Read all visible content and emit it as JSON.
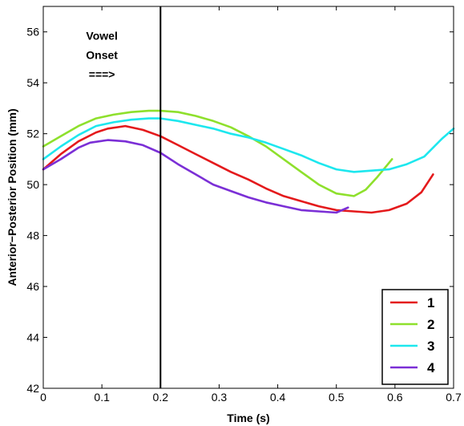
{
  "chart_data": {
    "type": "line",
    "title": "",
    "xlabel": "Time (s)",
    "ylabel": "Anterior−Posterior Position (mm)",
    "xlim": [
      0,
      0.7
    ],
    "ylim": [
      42,
      57
    ],
    "x_ticks": [
      0,
      0.1,
      0.2,
      0.3,
      0.4,
      0.5,
      0.6,
      0.7
    ],
    "x_tick_labels": [
      "0",
      "0.1",
      "0.2",
      "0.3",
      "0.4",
      "0.5",
      "0.6",
      "0.7"
    ],
    "y_ticks": [
      42,
      44,
      46,
      48,
      50,
      52,
      54,
      56
    ],
    "y_tick_labels": [
      "42",
      "44",
      "46",
      "48",
      "50",
      "52",
      "54",
      "56"
    ],
    "grid": false,
    "legend_position": "bottom-right",
    "vertical_line": {
      "x": 0.2,
      "color": "#000000"
    },
    "annotation": {
      "lines": [
        "Vowel",
        "Onset",
        "===>"
      ],
      "x": 0.1,
      "y": 55.7
    },
    "series": [
      {
        "name": "1",
        "color": "#e41a1c",
        "x": [
          0,
          0.03,
          0.06,
          0.09,
          0.11,
          0.14,
          0.17,
          0.2,
          0.23,
          0.26,
          0.29,
          0.32,
          0.35,
          0.38,
          0.41,
          0.44,
          0.47,
          0.5,
          0.53,
          0.56,
          0.59,
          0.62,
          0.645,
          0.665
        ],
        "y": [
          50.6,
          51.2,
          51.7,
          52.05,
          52.2,
          52.3,
          52.15,
          51.9,
          51.55,
          51.2,
          50.85,
          50.5,
          50.2,
          49.85,
          49.55,
          49.35,
          49.15,
          49.0,
          48.95,
          48.9,
          49.0,
          49.25,
          49.7,
          50.4
        ]
      },
      {
        "name": "2",
        "color": "#8ee02c",
        "x": [
          0,
          0.03,
          0.06,
          0.09,
          0.12,
          0.15,
          0.18,
          0.2,
          0.23,
          0.26,
          0.29,
          0.32,
          0.35,
          0.38,
          0.41,
          0.44,
          0.47,
          0.5,
          0.53,
          0.55,
          0.57,
          0.595
        ],
        "y": [
          51.5,
          51.9,
          52.3,
          52.6,
          52.75,
          52.85,
          52.9,
          52.9,
          52.85,
          52.7,
          52.5,
          52.25,
          51.9,
          51.5,
          51.0,
          50.5,
          50.0,
          49.65,
          49.55,
          49.8,
          50.3,
          51.0
        ]
      },
      {
        "name": "3",
        "color": "#1de7ee",
        "x": [
          0,
          0.03,
          0.06,
          0.09,
          0.12,
          0.15,
          0.18,
          0.2,
          0.23,
          0.26,
          0.29,
          0.32,
          0.35,
          0.38,
          0.41,
          0.44,
          0.47,
          0.5,
          0.53,
          0.56,
          0.59,
          0.62,
          0.65,
          0.68,
          0.7
        ],
        "y": [
          51.0,
          51.5,
          51.95,
          52.3,
          52.45,
          52.55,
          52.6,
          52.6,
          52.5,
          52.35,
          52.2,
          52.0,
          51.85,
          51.65,
          51.4,
          51.15,
          50.85,
          50.6,
          50.5,
          50.55,
          50.6,
          50.8,
          51.1,
          51.8,
          52.2
        ]
      },
      {
        "name": "4",
        "color": "#7b2fd6",
        "x": [
          0,
          0.03,
          0.06,
          0.08,
          0.11,
          0.14,
          0.17,
          0.2,
          0.23,
          0.26,
          0.29,
          0.32,
          0.35,
          0.38,
          0.41,
          0.44,
          0.47,
          0.5,
          0.52
        ],
        "y": [
          50.6,
          51.0,
          51.45,
          51.65,
          51.75,
          51.7,
          51.55,
          51.25,
          50.8,
          50.4,
          50.0,
          49.75,
          49.5,
          49.3,
          49.15,
          49.0,
          48.95,
          48.9,
          49.1
        ]
      }
    ]
  }
}
